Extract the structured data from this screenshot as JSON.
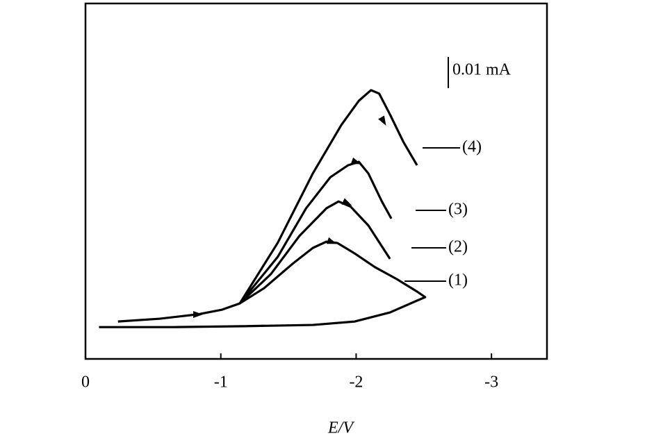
{
  "chart_data": {
    "type": "line",
    "x_label": "E/V",
    "xlim": [
      0,
      -3.41
    ],
    "xticks": [
      0,
      -1,
      -2,
      -3
    ],
    "ylim": [
      0,
      0.114
    ],
    "scale_bar": {
      "value": 0.01,
      "label": "0.01 mA"
    },
    "color": "#000000",
    "series": [
      {
        "name": "(1)",
        "x": [
          -0.24,
          -0.55,
          -0.83,
          -1.01,
          -1.14,
          -1.32,
          -1.53,
          -1.68,
          -1.78,
          -1.86,
          -1.99,
          -2.14,
          -2.3,
          -2.45,
          -2.51,
          -2.45,
          -2.25,
          -1.99,
          -1.68,
          -1.17,
          -0.65,
          -0.1
        ],
        "values": [
          0.012,
          0.0129,
          0.0143,
          0.0158,
          0.0178,
          0.0227,
          0.0305,
          0.0356,
          0.0376,
          0.0372,
          0.0338,
          0.0294,
          0.0256,
          0.0216,
          0.0198,
          0.0187,
          0.0149,
          0.012,
          0.0109,
          0.0105,
          0.0102,
          0.0102
        ]
      },
      {
        "name": "(2)",
        "x": [
          -1.14,
          -1.37,
          -1.58,
          -1.78,
          -1.87,
          -1.96,
          -2.09,
          -2.25
        ],
        "values": [
          0.0178,
          0.0272,
          0.0394,
          0.0483,
          0.0505,
          0.0488,
          0.0428,
          0.0321
        ]
      },
      {
        "name": "(3)",
        "x": [
          -1.14,
          -1.42,
          -1.63,
          -1.81,
          -1.94,
          -2.02,
          -2.09,
          -2.19,
          -2.26
        ],
        "values": [
          0.0178,
          0.0327,
          0.0483,
          0.0583,
          0.0621,
          0.0632,
          0.0595,
          0.0505,
          0.045
        ]
      },
      {
        "name": "(4)",
        "x": [
          -1.14,
          -1.42,
          -1.68,
          -1.89,
          -2.02,
          -2.11,
          -2.17,
          -2.25,
          -2.35,
          -2.45
        ],
        "values": [
          0.0178,
          0.0372,
          0.0595,
          0.075,
          0.0828,
          0.0862,
          0.0851,
          0.0784,
          0.0695,
          0.0621
        ]
      }
    ]
  }
}
